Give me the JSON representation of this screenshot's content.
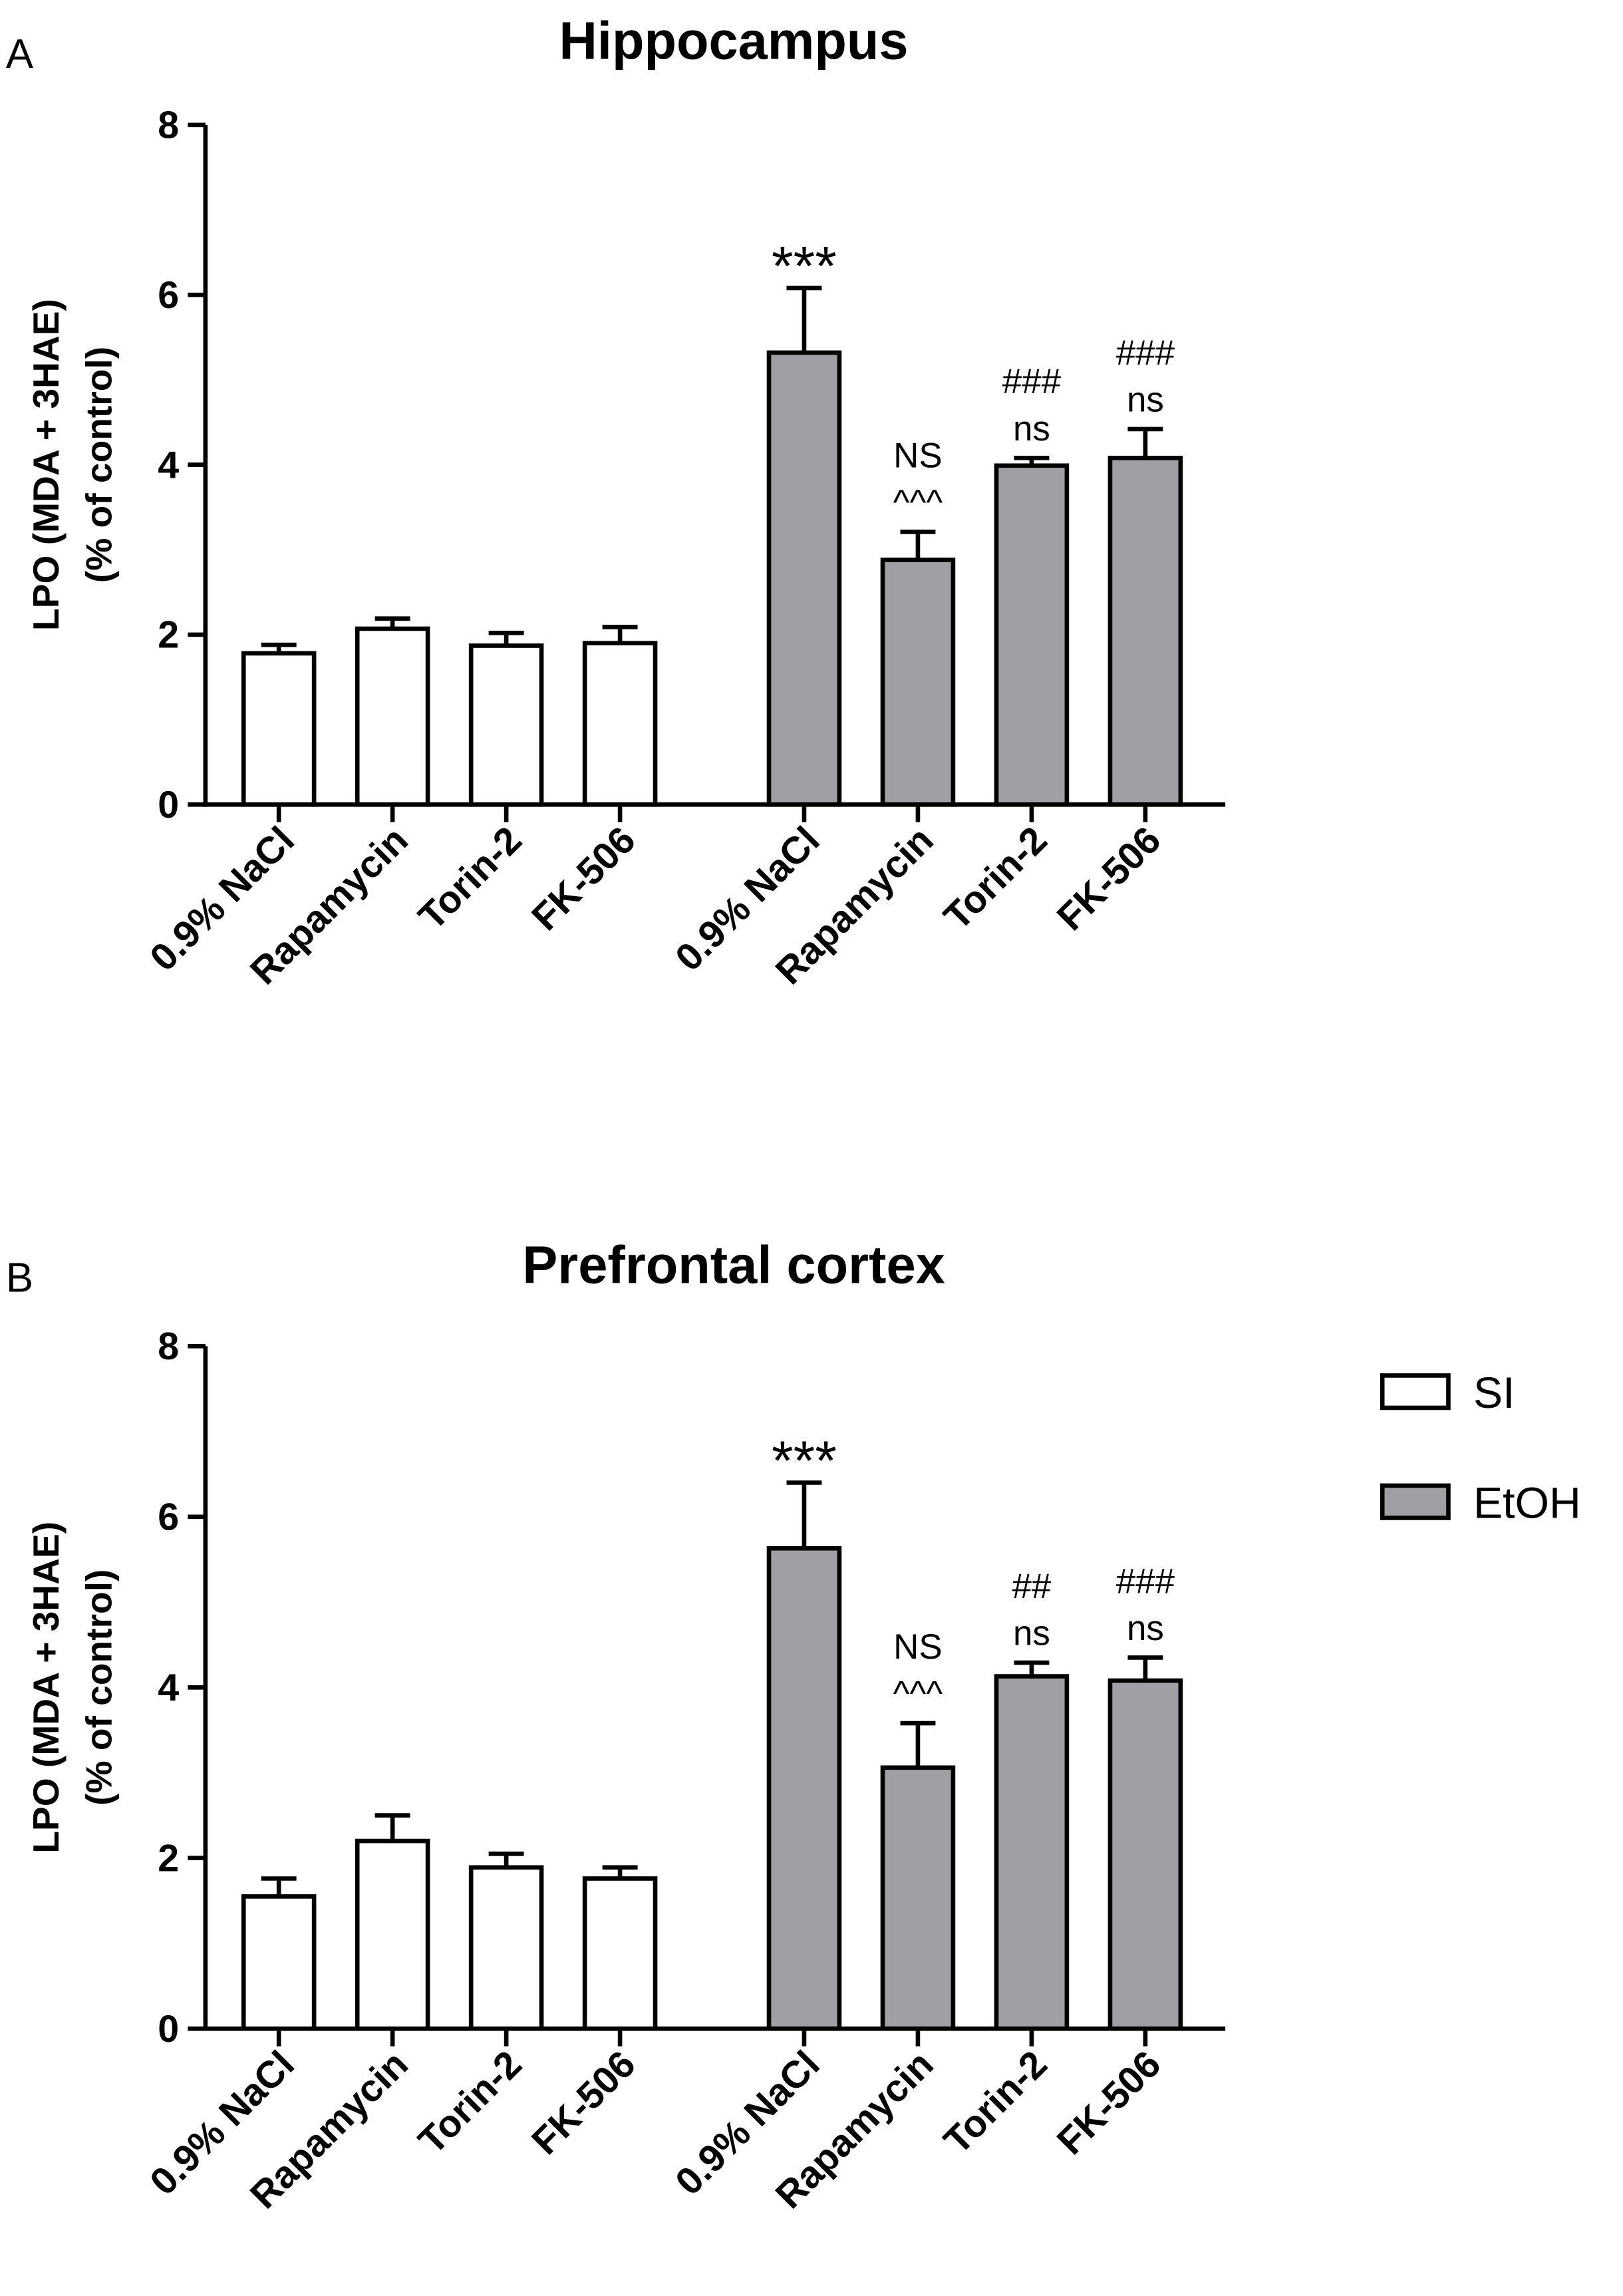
{
  "chart_data": [
    {
      "type": "bar",
      "panel": "A",
      "title": "Hippocampus",
      "ylabel": [
        "LPO (MDA + 3HAE)",
        "(% of control)"
      ],
      "categories": [
        "0.9% NaCl",
        "Rapamycin",
        "Torin-2",
        "FK-506",
        "0.9% NaCl",
        "Rapamycin",
        "Torin-2",
        "FK-506"
      ],
      "series": [
        {
          "color": "#ffffff",
          "values": [
            1.78,
            2.07,
            1.87,
            1.9,
            null,
            null,
            null,
            null
          ],
          "errors": [
            0.1,
            0.12,
            0.15,
            0.19,
            null,
            null,
            null,
            null
          ]
        },
        {
          "color": "#a0a0a4",
          "values": [
            null,
            null,
            null,
            null,
            5.32,
            2.88,
            3.99,
            4.08
          ],
          "errors": [
            null,
            null,
            null,
            null,
            0.76,
            0.33,
            0.09,
            0.34
          ]
        }
      ],
      "bar_annotations": [
        null,
        null,
        null,
        null,
        [
          "***"
        ],
        [
          "NS",
          "^^^"
        ],
        [
          "###",
          "ns"
        ],
        [
          "###",
          "ns"
        ]
      ],
      "ylim": [
        0,
        8
      ],
      "yticks": [
        0,
        2,
        4,
        6,
        8
      ]
    },
    {
      "type": "bar",
      "panel": "B",
      "title": "Prefrontal cortex",
      "ylabel": [
        "LPO (MDA + 3HAE)",
        "(% of control)"
      ],
      "categories": [
        "0.9% NaCl",
        "Rapamycin",
        "Torin-2",
        "FK-506",
        "0.9% NaCl",
        "Rapamycin",
        "Torin-2",
        "FK-506"
      ],
      "series": [
        {
          "name": "SI",
          "color": "#ffffff",
          "values": [
            1.55,
            2.2,
            1.89,
            1.76,
            null,
            null,
            null,
            null
          ],
          "errors": [
            0.21,
            0.3,
            0.16,
            0.13,
            null,
            null,
            null,
            null
          ]
        },
        {
          "name": "EtOH",
          "color": "#a0a0a4",
          "values": [
            null,
            null,
            null,
            null,
            5.63,
            3.06,
            4.13,
            4.08
          ],
          "errors": [
            null,
            null,
            null,
            null,
            0.77,
            0.52,
            0.16,
            0.27
          ]
        }
      ],
      "bar_annotations": [
        null,
        null,
        null,
        null,
        [
          "***"
        ],
        [
          "NS",
          "^^^"
        ],
        [
          "##",
          "ns"
        ],
        [
          "###",
          "ns"
        ]
      ],
      "ylim": [
        0,
        8
      ],
      "yticks": [
        0,
        2,
        4,
        6,
        8
      ],
      "legend": "right"
    }
  ]
}
